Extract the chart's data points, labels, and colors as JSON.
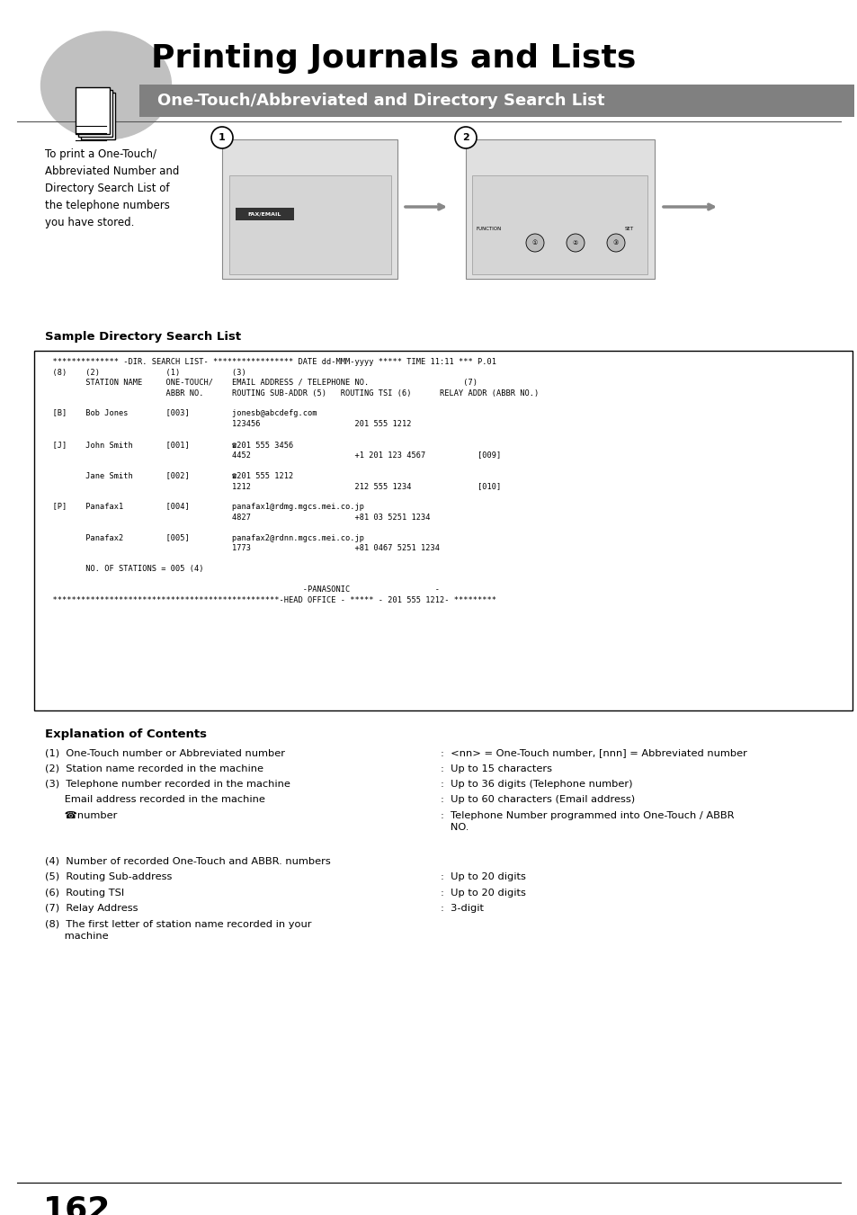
{
  "title": "Printing Journals and Lists",
  "subtitle": "One-Touch/Abbreviated and Directory Search List",
  "title_fontsize": 26,
  "subtitle_fontsize": 13,
  "header_bg": "#808080",
  "header_text_color": "#ffffff",
  "page_bg": "#ffffff",
  "page_number": "162",
  "intro_text": "To print a One-Touch/\nAbbreviated Number and\nDirectory Search List of\nthe telephone numbers\nyou have stored.",
  "sample_title": "Sample Directory Search List",
  "box_lines": [
    "  ************** -DIR. SEARCH LIST- ***************** DATE dd-MMM-yyyy ***** TIME 11:11 *** P.01",
    "  (8)    (2)              (1)           (3)",
    "         STATION NAME     ONE-TOUCH/    EMAIL ADDRESS / TELEPHONE NO.                    (7)",
    "                          ABBR NO.      ROUTING SUB-ADDR (5)   ROUTING TSI (6)      RELAY ADDR (ABBR NO.)",
    "",
    "  [B]    Bob Jones        [003]         jonesb@abcdefg.com",
    "                                        123456                    201 555 1212",
    "",
    "  [J]    John Smith       [001]         ☎201 555 3456",
    "                                        4452                      +1 201 123 4567           [009]",
    "",
    "         Jane Smith       [002]         ☎201 555 1212",
    "                                        1212                      212 555 1234              [010]",
    "",
    "  [P]    Panafax1         [004]         panafax1@rdmg.mgcs.mei.co.jp",
    "                                        4827                      +81 03 5251 1234",
    "",
    "         Panafax2         [005]         panafax2@rdnn.mgcs.mei.co.jp",
    "                                        1773                      +81 0467 5251 1234",
    "",
    "         NO. OF STATIONS = 005 (4)",
    "",
    "                                                       -PANASONIC                  -",
    "  ************************************************-HEAD OFFICE - ***** - 201 555 1212- *********"
  ],
  "explanation_title": "Explanation of Contents",
  "explanation_left": [
    "(1)  One-Touch number or Abbreviated number",
    "(2)  Station name recorded in the machine",
    "(3)  Telephone number recorded in the machine",
    "      Email address recorded in the machine",
    "      ☎number",
    "",
    "(4)  Number of recorded One-Touch and ABBR. numbers",
    "(5)  Routing Sub-address",
    "(6)  Routing TSI",
    "(7)  Relay Address",
    "(8)  The first letter of station name recorded in your\n      machine"
  ],
  "explanation_right": [
    ":  <nn> = One-Touch number, [nnn] = Abbreviated number",
    ":  Up to 15 characters",
    ":  Up to 36 digits (Telephone number)",
    ":  Up to 60 characters (Email address)",
    ":  Telephone Number programmed into One-Touch / ABBR\n   NO.",
    "",
    "",
    ":  Up to 20 digits",
    ":  Up to 20 digits",
    ":  3-digit",
    ""
  ]
}
